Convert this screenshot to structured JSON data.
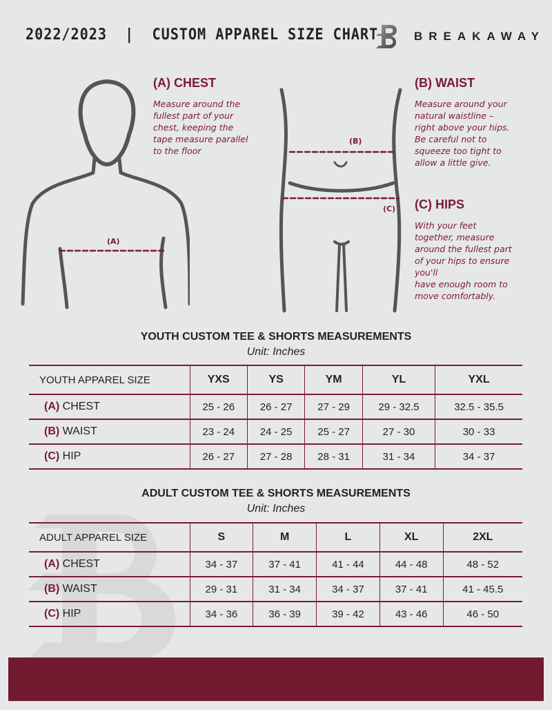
{
  "header": {
    "title": "2022/2023  |  CUSTOM APPAREL SIZE CHART",
    "brand": "BREAKAWAY",
    "logo_letter": "B"
  },
  "colors": {
    "accent": "#7a1a33",
    "background": "#e6e7e9",
    "footer": "#701a2f"
  },
  "sections": {
    "chest": {
      "title": "(A) CHEST",
      "text": [
        "Measure around the",
        "fullest part of your",
        "chest, keeping the",
        "tape measure parallel",
        "to the floor"
      ],
      "marker": "(A)"
    },
    "waist": {
      "title": "(B) WAIST",
      "text": [
        "Measure around your",
        "natural waistline –",
        "right above your hips.",
        "Be careful not to",
        "squeeze too tight to",
        "allow a little give."
      ],
      "marker": "(B)"
    },
    "hips": {
      "title": "(C) HIPS",
      "text": [
        "With your feet",
        "together, measure",
        "around the fullest part",
        "of your hips to ensure",
        "you'll",
        "have enough room to",
        "move comfortably."
      ],
      "marker": "(C)"
    }
  },
  "youth": {
    "title": "YOUTH CUSTOM TEE & SHORTS MEASUREMENTS",
    "unit": "Unit: Inches",
    "header": "YOUTH APPAREL SIZE",
    "sizes": [
      "YXS",
      "YS",
      "YM",
      "YL",
      "YXL"
    ],
    "rows": [
      {
        "letter": "(A)",
        "label": "CHEST",
        "values": [
          "25 - 26",
          "26 - 27",
          "27 - 29",
          "29 - 32.5",
          "32.5 - 35.5"
        ]
      },
      {
        "letter": "(B)",
        "label": "WAIST",
        "values": [
          "23 - 24",
          "24 - 25",
          "25 - 27",
          "27 - 30",
          "30 - 33"
        ]
      },
      {
        "letter": "(C)",
        "label": "HIP",
        "values": [
          "26 - 27",
          "27 - 28",
          "28 - 31",
          "31 - 34",
          "34 - 37"
        ]
      }
    ]
  },
  "adult": {
    "title": "ADULT CUSTOM TEE & SHORTS MEASUREMENTS",
    "unit": "Unit: Inches",
    "header": "ADULT APPAREL SIZE",
    "sizes": [
      "S",
      "M",
      "L",
      "XL",
      "2XL"
    ],
    "rows": [
      {
        "letter": "(A)",
        "label": "CHEST",
        "values": [
          "34 - 37",
          "37 - 41",
          "41 - 44",
          "44 - 48",
          "48 - 52"
        ]
      },
      {
        "letter": "(B)",
        "label": "WAIST",
        "values": [
          "29 - 31",
          "31 - 34",
          "34 - 37",
          "37 - 41",
          "41 - 45.5"
        ]
      },
      {
        "letter": "(C)",
        "label": "HIP",
        "values": [
          "34 - 36",
          "36 - 39",
          "39 - 42",
          "43 - 46",
          "46 - 50"
        ]
      }
    ]
  }
}
